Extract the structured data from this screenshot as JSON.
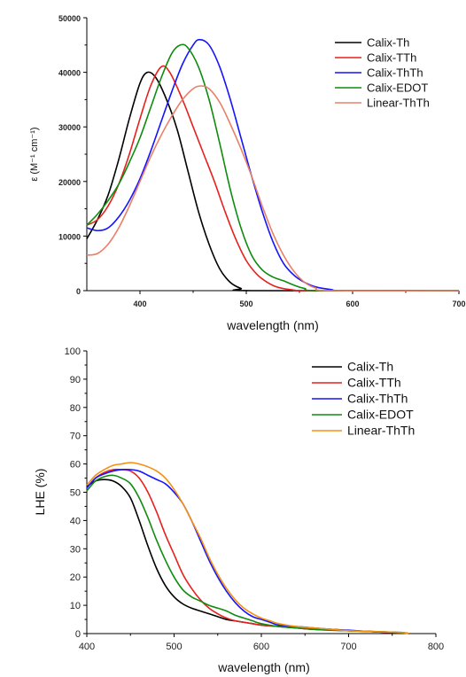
{
  "chart_data": [
    {
      "type": "line",
      "xlabel": "wavelength (nm)",
      "ylabel": "ε (M⁻¹ cm⁻¹)",
      "xlim": [
        350,
        700
      ],
      "ylim": [
        0,
        50000
      ],
      "xticks": [
        400,
        500,
        600,
        700
      ],
      "yticks": [
        0,
        10000,
        20000,
        30000,
        40000,
        50000
      ],
      "legend_position": "top-right",
      "grid": false,
      "series": [
        {
          "name": "Calix-Th",
          "color": "#000000",
          "points": [
            [
              350,
              9500
            ],
            [
              360,
              13000
            ],
            [
              370,
              17500
            ],
            [
              380,
              24000
            ],
            [
              390,
              31500
            ],
            [
              400,
              38000
            ],
            [
              407,
              40000
            ],
            [
              415,
              39000
            ],
            [
              425,
              35000
            ],
            [
              435,
              29500
            ],
            [
              445,
              22000
            ],
            [
              455,
              14500
            ],
            [
              465,
              8500
            ],
            [
              475,
              4000
            ],
            [
              485,
              1500
            ],
            [
              495,
              400
            ],
            [
              505,
              0
            ],
            [
              700,
              0
            ]
          ]
        },
        {
          "name": "Calix-TTh",
          "color": "#e8201c",
          "points": [
            [
              350,
              12000
            ],
            [
              360,
              13000
            ],
            [
              370,
              15500
            ],
            [
              380,
              19500
            ],
            [
              390,
              25000
            ],
            [
              400,
              31500
            ],
            [
              410,
              37500
            ],
            [
              420,
              41000
            ],
            [
              428,
              40000
            ],
            [
              440,
              35000
            ],
            [
              450,
              30000
            ],
            [
              460,
              25000
            ],
            [
              470,
              20000
            ],
            [
              480,
              14500
            ],
            [
              490,
              9500
            ],
            [
              500,
              5500
            ],
            [
              510,
              3000
            ],
            [
              520,
              1500
            ],
            [
              530,
              600
            ],
            [
              545,
              100
            ],
            [
              560,
              0
            ],
            [
              700,
              0
            ]
          ]
        },
        {
          "name": "Calix-ThTh",
          "color": "#1414ff",
          "points": [
            [
              350,
              11500
            ],
            [
              360,
              11000
            ],
            [
              370,
              11500
            ],
            [
              380,
              13500
            ],
            [
              390,
              16500
            ],
            [
              400,
              20500
            ],
            [
              410,
              25500
            ],
            [
              420,
              31000
            ],
            [
              430,
              36500
            ],
            [
              440,
              41500
            ],
            [
              450,
              45000
            ],
            [
              456,
              46000
            ],
            [
              465,
              45000
            ],
            [
              475,
              41000
            ],
            [
              485,
              35000
            ],
            [
              495,
              28000
            ],
            [
              505,
              21000
            ],
            [
              515,
              14500
            ],
            [
              525,
              9000
            ],
            [
              535,
              5000
            ],
            [
              545,
              2800
            ],
            [
              555,
              1500
            ],
            [
              565,
              700
            ],
            [
              580,
              200
            ],
            [
              595,
              0
            ],
            [
              700,
              0
            ]
          ]
        },
        {
          "name": "Calix-EDOT",
          "color": "#0f8c0f",
          "points": [
            [
              350,
              12000
            ],
            [
              360,
              14000
            ],
            [
              370,
              16500
            ],
            [
              380,
              19500
            ],
            [
              390,
              23500
            ],
            [
              400,
              28000
            ],
            [
              410,
              33500
            ],
            [
              420,
              39000
            ],
            [
              430,
              43500
            ],
            [
              438,
              45000
            ],
            [
              445,
              44500
            ],
            [
              455,
              41000
            ],
            [
              465,
              35000
            ],
            [
              475,
              27000
            ],
            [
              485,
              18500
            ],
            [
              495,
              11500
            ],
            [
              505,
              6500
            ],
            [
              515,
              3800
            ],
            [
              525,
              2500
            ],
            [
              535,
              1800
            ],
            [
              545,
              1000
            ],
            [
              555,
              400
            ],
            [
              570,
              0
            ],
            [
              700,
              0
            ]
          ]
        },
        {
          "name": "Linear-ThTh",
          "color": "#e88068",
          "points": [
            [
              350,
              6500
            ],
            [
              360,
              6800
            ],
            [
              370,
              8500
            ],
            [
              380,
              11500
            ],
            [
              390,
              15500
            ],
            [
              400,
              20000
            ],
            [
              410,
              24500
            ],
            [
              420,
              28500
            ],
            [
              430,
              32000
            ],
            [
              440,
              35000
            ],
            [
              450,
              37000
            ],
            [
              457,
              37500
            ],
            [
              465,
              37000
            ],
            [
              475,
              34500
            ],
            [
              485,
              30500
            ],
            [
              495,
              26000
            ],
            [
              505,
              21000
            ],
            [
              515,
              15500
            ],
            [
              525,
              10500
            ],
            [
              535,
              6500
            ],
            [
              545,
              3500
            ],
            [
              555,
              1500
            ],
            [
              565,
              500
            ],
            [
              580,
              0
            ],
            [
              700,
              0
            ]
          ]
        }
      ]
    },
    {
      "type": "line",
      "xlabel": "wavelength (nm)",
      "ylabel": "LHE (%)",
      "xlim": [
        400,
        800
      ],
      "ylim": [
        0,
        100
      ],
      "xticks": [
        400,
        500,
        600,
        700,
        800
      ],
      "yticks": [
        0,
        10,
        20,
        30,
        40,
        50,
        60,
        70,
        80,
        90,
        100
      ],
      "legend_position": "top-right",
      "grid": false,
      "series": [
        {
          "name": "Calix-Th",
          "color": "#000000",
          "points": [
            [
              400,
              52
            ],
            [
              410,
              54
            ],
            [
              420,
              54.5
            ],
            [
              430,
              54
            ],
            [
              440,
              52
            ],
            [
              450,
              48
            ],
            [
              460,
              40
            ],
            [
              470,
              31
            ],
            [
              480,
              23
            ],
            [
              490,
              17
            ],
            [
              500,
              13
            ],
            [
              510,
              10.5
            ],
            [
              520,
              9
            ],
            [
              530,
              8
            ],
            [
              540,
              7
            ],
            [
              550,
              6
            ],
            [
              560,
              5
            ],
            [
              570,
              4.5
            ],
            [
              580,
              4
            ],
            [
              590,
              3.5
            ],
            [
              600,
              3
            ],
            [
              620,
              2.5
            ],
            [
              640,
              2
            ],
            [
              660,
              1.5
            ],
            [
              680,
              1.5
            ],
            [
              700,
              1
            ],
            [
              720,
              0.8
            ],
            [
              740,
              0.5
            ],
            [
              760,
              0.3
            ],
            [
              770,
              0
            ]
          ]
        },
        {
          "name": "Calix-TTh",
          "color": "#e8201c",
          "points": [
            [
              400,
              51.5
            ],
            [
              410,
              55
            ],
            [
              420,
              57
            ],
            [
              430,
              58
            ],
            [
              440,
              58
            ],
            [
              450,
              57.5
            ],
            [
              460,
              55
            ],
            [
              470,
              50
            ],
            [
              480,
              43
            ],
            [
              490,
              35
            ],
            [
              500,
              28
            ],
            [
              510,
              21
            ],
            [
              520,
              16
            ],
            [
              530,
              12
            ],
            [
              540,
              9
            ],
            [
              550,
              7
            ],
            [
              560,
              5.5
            ],
            [
              570,
              4.5
            ],
            [
              580,
              4
            ],
            [
              590,
              3.5
            ],
            [
              600,
              3
            ],
            [
              620,
              2.5
            ],
            [
              640,
              2
            ],
            [
              660,
              1.5
            ],
            [
              680,
              1.2
            ],
            [
              700,
              1
            ],
            [
              720,
              0.8
            ],
            [
              740,
              0.5
            ],
            [
              760,
              0.3
            ],
            [
              770,
              0
            ]
          ]
        },
        {
          "name": "Calix-ThTh",
          "color": "#1414ff",
          "points": [
            [
              400,
              51.5
            ],
            [
              410,
              55
            ],
            [
              420,
              56.5
            ],
            [
              430,
              57.5
            ],
            [
              440,
              58
            ],
            [
              450,
              58
            ],
            [
              460,
              57.5
            ],
            [
              470,
              56
            ],
            [
              480,
              54.5
            ],
            [
              490,
              53
            ],
            [
              500,
              50
            ],
            [
              510,
              46
            ],
            [
              520,
              40
            ],
            [
              530,
              33
            ],
            [
              540,
              26
            ],
            [
              550,
              20
            ],
            [
              560,
              15
            ],
            [
              570,
              11
            ],
            [
              580,
              8
            ],
            [
              590,
              6
            ],
            [
              600,
              5
            ],
            [
              610,
              4
            ],
            [
              620,
              3
            ],
            [
              640,
              2.5
            ],
            [
              660,
              2
            ],
            [
              680,
              1.5
            ],
            [
              700,
              1.2
            ],
            [
              720,
              0.8
            ],
            [
              740,
              0.6
            ],
            [
              760,
              0.4
            ],
            [
              770,
              0
            ]
          ]
        },
        {
          "name": "Calix-EDOT",
          "color": "#0f8c0f",
          "points": [
            [
              400,
              50.5
            ],
            [
              410,
              54
            ],
            [
              420,
              55.5
            ],
            [
              430,
              56
            ],
            [
              440,
              55
            ],
            [
              450,
              53
            ],
            [
              460,
              48
            ],
            [
              470,
              41
            ],
            [
              480,
              33
            ],
            [
              490,
              26
            ],
            [
              500,
              20
            ],
            [
              510,
              15.5
            ],
            [
              520,
              13
            ],
            [
              530,
              11.5
            ],
            [
              540,
              10
            ],
            [
              550,
              9
            ],
            [
              560,
              8
            ],
            [
              570,
              6.5
            ],
            [
              580,
              5.5
            ],
            [
              590,
              4.5
            ],
            [
              600,
              3.5
            ],
            [
              620,
              2.5
            ],
            [
              640,
              2
            ],
            [
              660,
              1.5
            ],
            [
              680,
              1.2
            ],
            [
              700,
              1
            ],
            [
              720,
              0.8
            ],
            [
              740,
              0.6
            ],
            [
              760,
              0.3
            ],
            [
              770,
              0
            ]
          ]
        },
        {
          "name": "Linear-ThTh",
          "color": "#f5900f",
          "points": [
            [
              400,
              52.5
            ],
            [
              410,
              56
            ],
            [
              420,
              58
            ],
            [
              430,
              59.5
            ],
            [
              440,
              60
            ],
            [
              450,
              60.5
            ],
            [
              460,
              60
            ],
            [
              470,
              59
            ],
            [
              480,
              57.5
            ],
            [
              490,
              55
            ],
            [
              500,
              51
            ],
            [
              510,
              46
            ],
            [
              520,
              40
            ],
            [
              530,
              34
            ],
            [
              540,
              27
            ],
            [
              550,
              21
            ],
            [
              560,
              16
            ],
            [
              570,
              12
            ],
            [
              580,
              9
            ],
            [
              590,
              7
            ],
            [
              600,
              5.5
            ],
            [
              610,
              4.5
            ],
            [
              620,
              3.5
            ],
            [
              640,
              2.5
            ],
            [
              660,
              2
            ],
            [
              680,
              1.5
            ],
            [
              700,
              1
            ],
            [
              720,
              0.8
            ],
            [
              740,
              0.6
            ],
            [
              760,
              0.4
            ],
            [
              770,
              0
            ]
          ]
        }
      ]
    }
  ]
}
